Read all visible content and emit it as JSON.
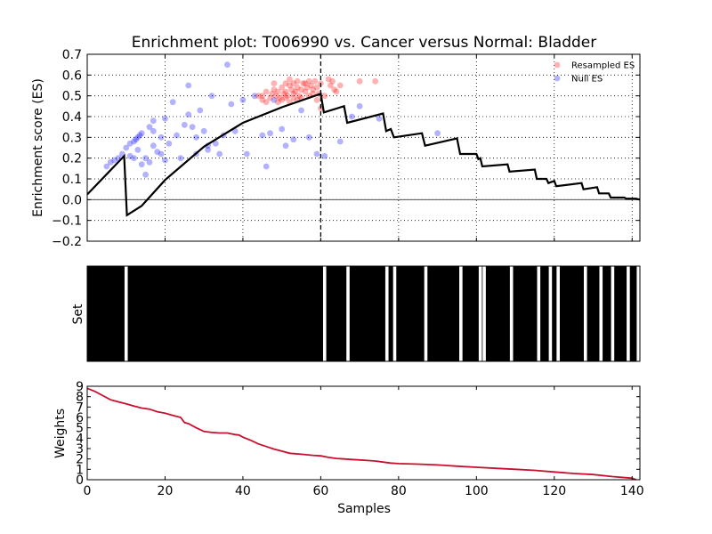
{
  "chart_data": [
    {
      "type": "line+scatter",
      "title": "Enrichment plot: T006990 vs. Cancer versus Normal: Bladder",
      "xlabel": "",
      "ylabel": "Enrichment score (ES)",
      "xlim": [
        0,
        142
      ],
      "ylim": [
        -0.2,
        0.7
      ],
      "xticks": [
        0,
        20,
        40,
        60,
        80,
        100,
        120,
        140
      ],
      "yticks": [
        -0.2,
        -0.1,
        0.0,
        0.1,
        0.2,
        0.3,
        0.4,
        0.5,
        0.6,
        0.7
      ],
      "ytick_labels": [
        "−0.2",
        "−0.1",
        "0.0",
        "0.1",
        "0.2",
        "0.3",
        "0.4",
        "0.5",
        "0.6",
        "0.7"
      ],
      "grid": true,
      "legend_position": "top-right",
      "max_es_x": 60,
      "legend": [
        {
          "label": "Resampled ES",
          "color": "#ff0000"
        },
        {
          "label": "Null ES",
          "color": "#0000ff"
        }
      ],
      "es_line": {
        "color": "#000000",
        "x": [
          0,
          9.5,
          10.2,
          14,
          20,
          30,
          40,
          50,
          60,
          60.8,
          66,
          66.8,
          76,
          76.8,
          78,
          78.8,
          86,
          86.8,
          95,
          95.8,
          100,
          100.5,
          101,
          101.5,
          108,
          108.5,
          115,
          115.5,
          118,
          118.5,
          120,
          120.5,
          127,
          127.5,
          131,
          131.5,
          134,
          134.5,
          138,
          138.5,
          141,
          142
        ],
        "y": [
          0.025,
          0.21,
          -0.075,
          -0.03,
          0.095,
          0.255,
          0.37,
          0.445,
          0.51,
          0.42,
          0.45,
          0.37,
          0.415,
          0.33,
          0.34,
          0.3,
          0.32,
          0.26,
          0.295,
          0.22,
          0.22,
          0.195,
          0.2,
          0.16,
          0.17,
          0.135,
          0.145,
          0.1,
          0.1,
          0.08,
          0.09,
          0.065,
          0.08,
          0.05,
          0.06,
          0.03,
          0.03,
          0.01,
          0.01,
          0.005,
          0.005,
          0.0
        ]
      },
      "null_es": {
        "color": "#0000ff",
        "points": [
          [
            5,
            0.16
          ],
          [
            6,
            0.18
          ],
          [
            7,
            0.19
          ],
          [
            8,
            0.2
          ],
          [
            9,
            0.22
          ],
          [
            10,
            0.25
          ],
          [
            11,
            0.27
          ],
          [
            12,
            0.28
          ],
          [
            12.5,
            0.29
          ],
          [
            13,
            0.3
          ],
          [
            13.5,
            0.31
          ],
          [
            14,
            0.32
          ],
          [
            11,
            0.21
          ],
          [
            12,
            0.2
          ],
          [
            13,
            0.24
          ],
          [
            14,
            0.17
          ],
          [
            15,
            0.12
          ],
          [
            15,
            0.2
          ],
          [
            16,
            0.18
          ],
          [
            16,
            0.35
          ],
          [
            17,
            0.33
          ],
          [
            17,
            0.38
          ],
          [
            17,
            0.26
          ],
          [
            18,
            0.23
          ],
          [
            19,
            0.3
          ],
          [
            19,
            0.22
          ],
          [
            20,
            0.19
          ],
          [
            20,
            0.39
          ],
          [
            21,
            0.27
          ],
          [
            22,
            0.47
          ],
          [
            23,
            0.31
          ],
          [
            24,
            0.2
          ],
          [
            25,
            0.36
          ],
          [
            26,
            0.55
          ],
          [
            26,
            0.41
          ],
          [
            27,
            0.35
          ],
          [
            28,
            0.3
          ],
          [
            28,
            0.22
          ],
          [
            29,
            0.43
          ],
          [
            30,
            0.33
          ],
          [
            31,
            0.26
          ],
          [
            31,
            0.24
          ],
          [
            32,
            0.5
          ],
          [
            33,
            0.27
          ],
          [
            34,
            0.22
          ],
          [
            35,
            0.31
          ],
          [
            36,
            0.65
          ],
          [
            37,
            0.46
          ],
          [
            38,
            0.33
          ],
          [
            40,
            0.48
          ],
          [
            41,
            0.22
          ],
          [
            43,
            0.5
          ],
          [
            45,
            0.31
          ],
          [
            46,
            0.16
          ],
          [
            47,
            0.32
          ],
          [
            48,
            0.48
          ],
          [
            50,
            0.34
          ],
          [
            51,
            0.26
          ],
          [
            53,
            0.29
          ],
          [
            55,
            0.43
          ],
          [
            57,
            0.3
          ],
          [
            59,
            0.22
          ],
          [
            61,
            0.21
          ],
          [
            65,
            0.28
          ],
          [
            68,
            0.4
          ],
          [
            70,
            0.45
          ],
          [
            75,
            0.39
          ],
          [
            90,
            0.32
          ]
        ]
      },
      "resampled_es": {
        "color": "#ff0000",
        "points": [
          [
            44,
            0.5
          ],
          [
            45,
            0.48
          ],
          [
            46,
            0.52
          ],
          [
            47,
            0.49
          ],
          [
            47.5,
            0.51
          ],
          [
            48,
            0.53
          ],
          [
            48.5,
            0.5
          ],
          [
            49,
            0.52
          ],
          [
            49.5,
            0.49
          ],
          [
            50,
            0.54
          ],
          [
            50.5,
            0.51
          ],
          [
            51,
            0.52
          ],
          [
            51.5,
            0.5
          ],
          [
            52,
            0.55
          ],
          [
            52.5,
            0.53
          ],
          [
            53,
            0.49
          ],
          [
            53.5,
            0.52
          ],
          [
            54,
            0.54
          ],
          [
            54.5,
            0.5
          ],
          [
            55,
            0.53
          ],
          [
            55.5,
            0.56
          ],
          [
            56,
            0.52
          ],
          [
            56.5,
            0.54
          ],
          [
            57,
            0.5
          ],
          [
            57.5,
            0.55
          ],
          [
            58,
            0.53
          ],
          [
            58.5,
            0.57
          ],
          [
            59,
            0.54
          ],
          [
            59.5,
            0.51
          ],
          [
            60,
            0.56
          ],
          [
            48,
            0.56
          ],
          [
            49,
            0.47
          ],
          [
            50,
            0.48
          ],
          [
            51,
            0.56
          ],
          [
            52,
            0.47
          ],
          [
            53,
            0.56
          ],
          [
            54,
            0.48
          ],
          [
            55,
            0.49
          ],
          [
            56,
            0.56
          ],
          [
            57,
            0.57
          ],
          [
            58,
            0.51
          ],
          [
            59,
            0.48
          ],
          [
            46,
            0.47
          ],
          [
            45,
            0.5
          ],
          [
            52,
            0.58
          ],
          [
            54,
            0.57
          ],
          [
            60,
            0.44
          ],
          [
            62,
            0.58
          ],
          [
            62.5,
            0.55
          ],
          [
            63,
            0.57
          ],
          [
            63.5,
            0.53
          ],
          [
            64,
            0.52
          ],
          [
            65,
            0.55
          ],
          [
            70,
            0.57
          ],
          [
            74,
            0.57
          ],
          [
            61,
            0.5
          ],
          [
            53,
            0.51
          ],
          [
            51,
            0.49
          ]
        ]
      }
    },
    {
      "type": "barcode",
      "xlabel": "",
      "ylabel": "Set",
      "xlim": [
        0,
        142
      ],
      "gap_color": "#ffffff",
      "hit_color": "#000000",
      "gaps": [
        10,
        61,
        67,
        77,
        79,
        87,
        96,
        101,
        102,
        109,
        116,
        119,
        121,
        128,
        132,
        135,
        139,
        142
      ]
    },
    {
      "type": "line",
      "xlabel": "Samples",
      "ylabel": "Weights",
      "xlim": [
        0,
        142
      ],
      "ylim": [
        0,
        9
      ],
      "xticks": [
        0,
        20,
        40,
        60,
        80,
        100,
        120,
        140
      ],
      "yticks": [
        0,
        1,
        2,
        3,
        4,
        5,
        6,
        7,
        8,
        9
      ],
      "color": "#c8102e",
      "x": [
        0,
        2,
        4,
        6,
        8,
        10,
        12,
        14,
        16,
        18,
        20,
        22,
        24,
        25,
        26,
        28,
        30,
        32,
        34,
        36,
        38,
        39,
        40,
        42,
        44,
        46,
        48,
        50,
        52,
        55,
        58,
        60,
        62,
        64,
        66,
        68,
        70,
        72,
        74,
        76,
        78,
        80,
        85,
        90,
        95,
        100,
        105,
        110,
        115,
        120,
        125,
        130,
        135,
        140,
        141
      ],
      "y": [
        8.8,
        8.5,
        8.1,
        7.7,
        7.5,
        7.3,
        7.1,
        6.9,
        6.8,
        6.55,
        6.4,
        6.2,
        6.0,
        5.5,
        5.4,
        5.0,
        4.65,
        4.55,
        4.5,
        4.5,
        4.35,
        4.3,
        4.1,
        3.8,
        3.45,
        3.2,
        2.95,
        2.75,
        2.55,
        2.45,
        2.35,
        2.3,
        2.15,
        2.05,
        2.0,
        1.95,
        1.9,
        1.85,
        1.8,
        1.7,
        1.6,
        1.55,
        1.5,
        1.42,
        1.3,
        1.2,
        1.1,
        1.0,
        0.9,
        0.75,
        0.6,
        0.5,
        0.3,
        0.15,
        0.0
      ]
    }
  ]
}
